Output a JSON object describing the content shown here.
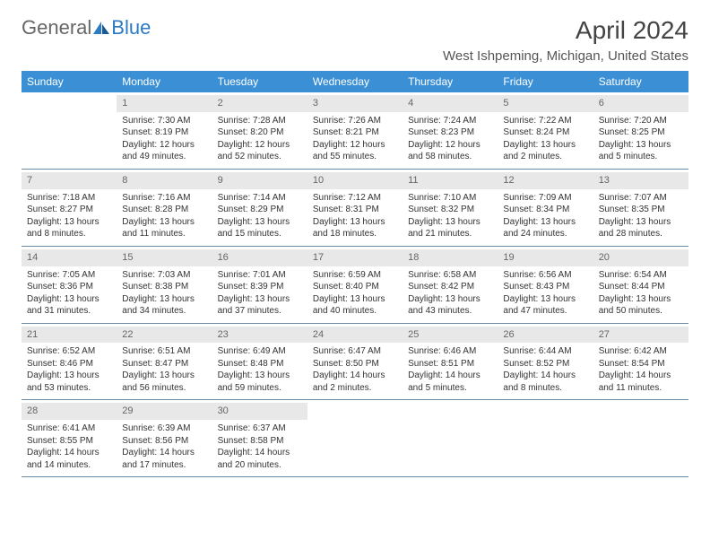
{
  "logo": {
    "text1": "General",
    "text2": "Blue"
  },
  "title": "April 2024",
  "location": "West Ishpeming, Michigan, United States",
  "colors": {
    "header_bg": "#3b8fd4",
    "header_text": "#ffffff",
    "band_bg": "#e8e8e8",
    "border": "#6a8aa8",
    "logo_blue": "#2a7ac4"
  },
  "day_names": [
    "Sunday",
    "Monday",
    "Tuesday",
    "Wednesday",
    "Thursday",
    "Friday",
    "Saturday"
  ],
  "weeks": [
    [
      {
        "n": "",
        "sr": "",
        "ss": "",
        "dl1": "",
        "dl2": ""
      },
      {
        "n": "1",
        "sr": "Sunrise: 7:30 AM",
        "ss": "Sunset: 8:19 PM",
        "dl1": "Daylight: 12 hours",
        "dl2": "and 49 minutes."
      },
      {
        "n": "2",
        "sr": "Sunrise: 7:28 AM",
        "ss": "Sunset: 8:20 PM",
        "dl1": "Daylight: 12 hours",
        "dl2": "and 52 minutes."
      },
      {
        "n": "3",
        "sr": "Sunrise: 7:26 AM",
        "ss": "Sunset: 8:21 PM",
        "dl1": "Daylight: 12 hours",
        "dl2": "and 55 minutes."
      },
      {
        "n": "4",
        "sr": "Sunrise: 7:24 AM",
        "ss": "Sunset: 8:23 PM",
        "dl1": "Daylight: 12 hours",
        "dl2": "and 58 minutes."
      },
      {
        "n": "5",
        "sr": "Sunrise: 7:22 AM",
        "ss": "Sunset: 8:24 PM",
        "dl1": "Daylight: 13 hours",
        "dl2": "and 2 minutes."
      },
      {
        "n": "6",
        "sr": "Sunrise: 7:20 AM",
        "ss": "Sunset: 8:25 PM",
        "dl1": "Daylight: 13 hours",
        "dl2": "and 5 minutes."
      }
    ],
    [
      {
        "n": "7",
        "sr": "Sunrise: 7:18 AM",
        "ss": "Sunset: 8:27 PM",
        "dl1": "Daylight: 13 hours",
        "dl2": "and 8 minutes."
      },
      {
        "n": "8",
        "sr": "Sunrise: 7:16 AM",
        "ss": "Sunset: 8:28 PM",
        "dl1": "Daylight: 13 hours",
        "dl2": "and 11 minutes."
      },
      {
        "n": "9",
        "sr": "Sunrise: 7:14 AM",
        "ss": "Sunset: 8:29 PM",
        "dl1": "Daylight: 13 hours",
        "dl2": "and 15 minutes."
      },
      {
        "n": "10",
        "sr": "Sunrise: 7:12 AM",
        "ss": "Sunset: 8:31 PM",
        "dl1": "Daylight: 13 hours",
        "dl2": "and 18 minutes."
      },
      {
        "n": "11",
        "sr": "Sunrise: 7:10 AM",
        "ss": "Sunset: 8:32 PM",
        "dl1": "Daylight: 13 hours",
        "dl2": "and 21 minutes."
      },
      {
        "n": "12",
        "sr": "Sunrise: 7:09 AM",
        "ss": "Sunset: 8:34 PM",
        "dl1": "Daylight: 13 hours",
        "dl2": "and 24 minutes."
      },
      {
        "n": "13",
        "sr": "Sunrise: 7:07 AM",
        "ss": "Sunset: 8:35 PM",
        "dl1": "Daylight: 13 hours",
        "dl2": "and 28 minutes."
      }
    ],
    [
      {
        "n": "14",
        "sr": "Sunrise: 7:05 AM",
        "ss": "Sunset: 8:36 PM",
        "dl1": "Daylight: 13 hours",
        "dl2": "and 31 minutes."
      },
      {
        "n": "15",
        "sr": "Sunrise: 7:03 AM",
        "ss": "Sunset: 8:38 PM",
        "dl1": "Daylight: 13 hours",
        "dl2": "and 34 minutes."
      },
      {
        "n": "16",
        "sr": "Sunrise: 7:01 AM",
        "ss": "Sunset: 8:39 PM",
        "dl1": "Daylight: 13 hours",
        "dl2": "and 37 minutes."
      },
      {
        "n": "17",
        "sr": "Sunrise: 6:59 AM",
        "ss": "Sunset: 8:40 PM",
        "dl1": "Daylight: 13 hours",
        "dl2": "and 40 minutes."
      },
      {
        "n": "18",
        "sr": "Sunrise: 6:58 AM",
        "ss": "Sunset: 8:42 PM",
        "dl1": "Daylight: 13 hours",
        "dl2": "and 43 minutes."
      },
      {
        "n": "19",
        "sr": "Sunrise: 6:56 AM",
        "ss": "Sunset: 8:43 PM",
        "dl1": "Daylight: 13 hours",
        "dl2": "and 47 minutes."
      },
      {
        "n": "20",
        "sr": "Sunrise: 6:54 AM",
        "ss": "Sunset: 8:44 PM",
        "dl1": "Daylight: 13 hours",
        "dl2": "and 50 minutes."
      }
    ],
    [
      {
        "n": "21",
        "sr": "Sunrise: 6:52 AM",
        "ss": "Sunset: 8:46 PM",
        "dl1": "Daylight: 13 hours",
        "dl2": "and 53 minutes."
      },
      {
        "n": "22",
        "sr": "Sunrise: 6:51 AM",
        "ss": "Sunset: 8:47 PM",
        "dl1": "Daylight: 13 hours",
        "dl2": "and 56 minutes."
      },
      {
        "n": "23",
        "sr": "Sunrise: 6:49 AM",
        "ss": "Sunset: 8:48 PM",
        "dl1": "Daylight: 13 hours",
        "dl2": "and 59 minutes."
      },
      {
        "n": "24",
        "sr": "Sunrise: 6:47 AM",
        "ss": "Sunset: 8:50 PM",
        "dl1": "Daylight: 14 hours",
        "dl2": "and 2 minutes."
      },
      {
        "n": "25",
        "sr": "Sunrise: 6:46 AM",
        "ss": "Sunset: 8:51 PM",
        "dl1": "Daylight: 14 hours",
        "dl2": "and 5 minutes."
      },
      {
        "n": "26",
        "sr": "Sunrise: 6:44 AM",
        "ss": "Sunset: 8:52 PM",
        "dl1": "Daylight: 14 hours",
        "dl2": "and 8 minutes."
      },
      {
        "n": "27",
        "sr": "Sunrise: 6:42 AM",
        "ss": "Sunset: 8:54 PM",
        "dl1": "Daylight: 14 hours",
        "dl2": "and 11 minutes."
      }
    ],
    [
      {
        "n": "28",
        "sr": "Sunrise: 6:41 AM",
        "ss": "Sunset: 8:55 PM",
        "dl1": "Daylight: 14 hours",
        "dl2": "and 14 minutes."
      },
      {
        "n": "29",
        "sr": "Sunrise: 6:39 AM",
        "ss": "Sunset: 8:56 PM",
        "dl1": "Daylight: 14 hours",
        "dl2": "and 17 minutes."
      },
      {
        "n": "30",
        "sr": "Sunrise: 6:37 AM",
        "ss": "Sunset: 8:58 PM",
        "dl1": "Daylight: 14 hours",
        "dl2": "and 20 minutes."
      },
      {
        "n": "",
        "sr": "",
        "ss": "",
        "dl1": "",
        "dl2": ""
      },
      {
        "n": "",
        "sr": "",
        "ss": "",
        "dl1": "",
        "dl2": ""
      },
      {
        "n": "",
        "sr": "",
        "ss": "",
        "dl1": "",
        "dl2": ""
      },
      {
        "n": "",
        "sr": "",
        "ss": "",
        "dl1": "",
        "dl2": ""
      }
    ]
  ]
}
